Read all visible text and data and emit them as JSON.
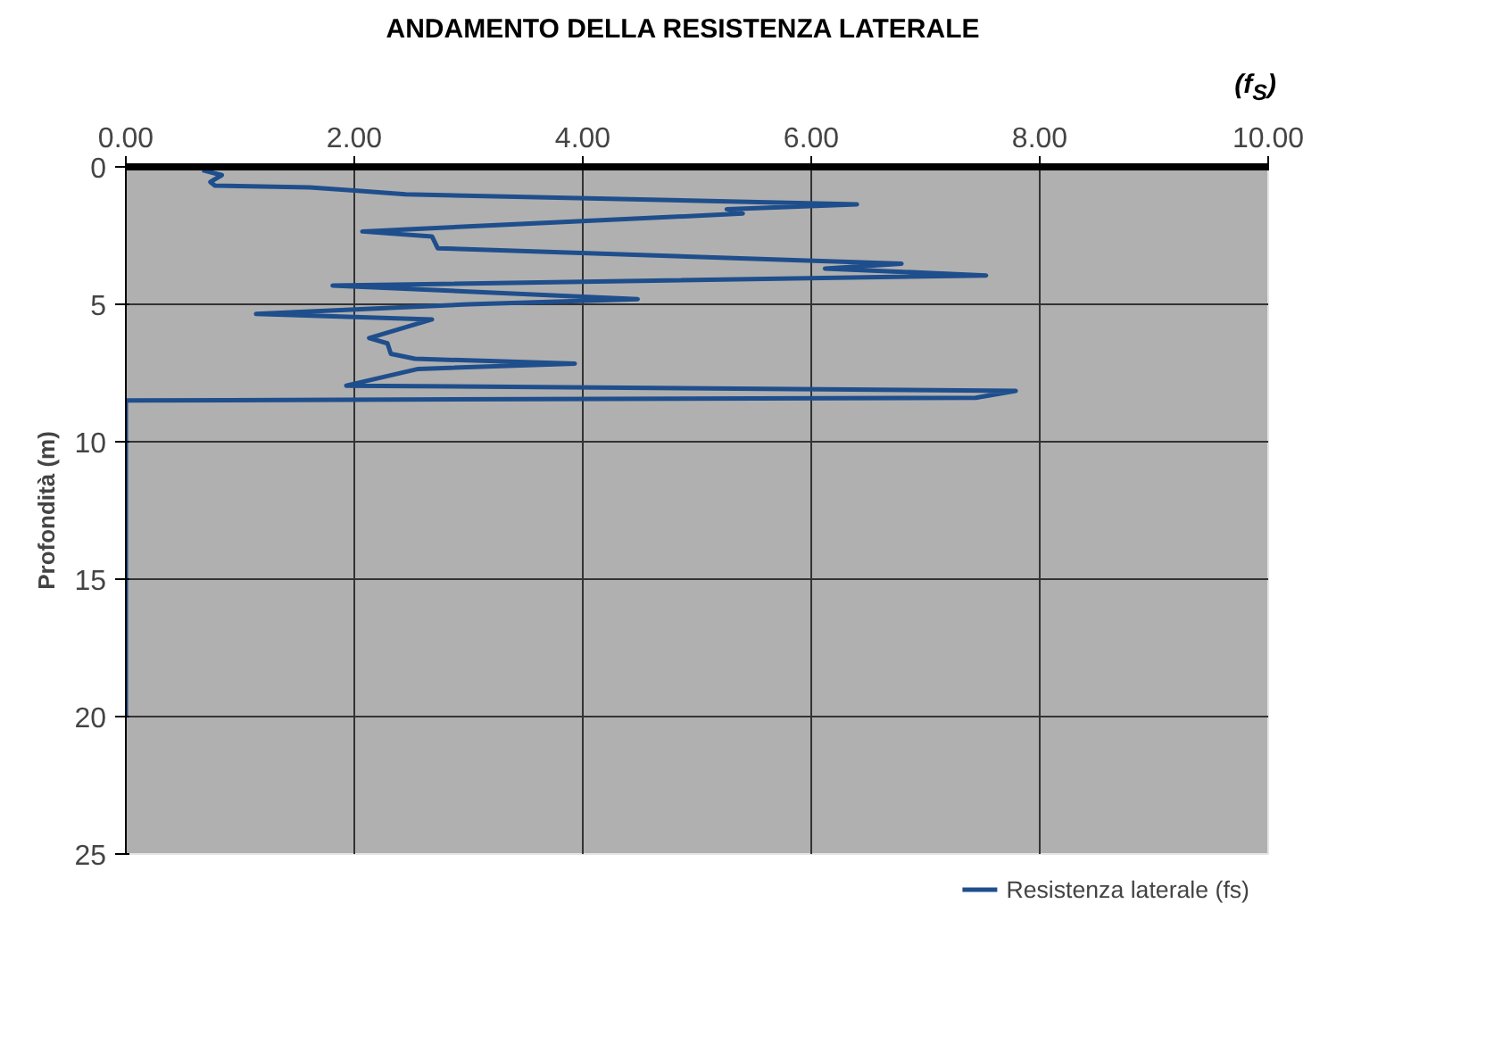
{
  "chart_data": {
    "type": "line",
    "title": "ANDAMENTO DELLA RESISTENZA LATERALE",
    "xlabel": "(f$_{S}$)",
    "ylabel": "Profondità (m)",
    "xlim": [
      0,
      10
    ],
    "ylim": [
      25,
      0
    ],
    "xticks": [
      {
        "value": 0,
        "label": "0.00"
      },
      {
        "value": 2,
        "label": "2.00"
      },
      {
        "value": 4,
        "label": "4.00"
      },
      {
        "value": 6,
        "label": "6.00"
      },
      {
        "value": 8,
        "label": "8.00"
      },
      {
        "value": 10,
        "label": "10.00"
      }
    ],
    "yticks": [
      0,
      5,
      10,
      15,
      20,
      25
    ],
    "grid": true,
    "legend": "bottom",
    "line_style": "solid",
    "marker": "none",
    "series": [
      {
        "name": "Resistenza laterale (fs)",
        "color": "#1f4e8c",
        "x": [
          0.67,
          0.84,
          0.74,
          0.78,
          1.61,
          2.0,
          2.45,
          6.4,
          5.26,
          5.4,
          2.07,
          2.68,
          2.73,
          6.79,
          6.12,
          7.53,
          1.81,
          4.48,
          3.0,
          1.14,
          2.68,
          2.13,
          2.29,
          2.32,
          2.53,
          3.93,
          2.56,
          1.93,
          7.79,
          7.44,
          0,
          0
        ],
        "values": [
          0.12,
          0.3,
          0.55,
          0.68,
          0.75,
          0.86,
          1.0,
          1.36,
          1.54,
          1.7,
          2.35,
          2.53,
          2.96,
          3.52,
          3.7,
          3.95,
          4.32,
          4.81,
          5.0,
          5.35,
          5.55,
          6.23,
          6.42,
          6.8,
          6.98,
          7.16,
          7.35,
          7.96,
          8.15,
          8.4,
          8.5,
          20
        ]
      }
    ]
  }
}
